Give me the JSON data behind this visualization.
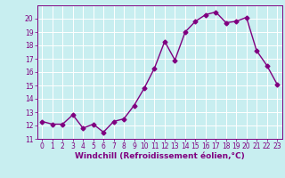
{
  "x": [
    0,
    1,
    2,
    3,
    4,
    5,
    6,
    7,
    8,
    9,
    10,
    11,
    12,
    13,
    14,
    15,
    16,
    17,
    18,
    19,
    20,
    21,
    22,
    23
  ],
  "y": [
    12.3,
    12.1,
    12.1,
    12.8,
    11.8,
    12.1,
    11.5,
    12.3,
    12.5,
    13.5,
    14.8,
    16.3,
    18.3,
    16.9,
    19.0,
    19.8,
    20.3,
    20.5,
    19.7,
    19.8,
    20.1,
    17.6,
    16.5,
    15.1
  ],
  "line_color": "#800080",
  "marker": "D",
  "markersize": 2.5,
  "linewidth": 1.0,
  "xlabel": "Windchill (Refroidissement éolien,°C)",
  "xlabel_fontsize": 6.5,
  "xlim": [
    -0.5,
    23.5
  ],
  "ylim": [
    11,
    21
  ],
  "yticks": [
    11,
    12,
    13,
    14,
    15,
    16,
    17,
    18,
    19,
    20
  ],
  "xticks": [
    0,
    1,
    2,
    3,
    4,
    5,
    6,
    7,
    8,
    9,
    10,
    11,
    12,
    13,
    14,
    15,
    16,
    17,
    18,
    19,
    20,
    21,
    22,
    23
  ],
  "background_color": "#c8eef0",
  "grid_color": "#ffffff",
  "tick_color": "#800080",
  "tick_label_color": "#800080",
  "tick_fontsize": 5.5,
  "xlabel_color": "#800080"
}
